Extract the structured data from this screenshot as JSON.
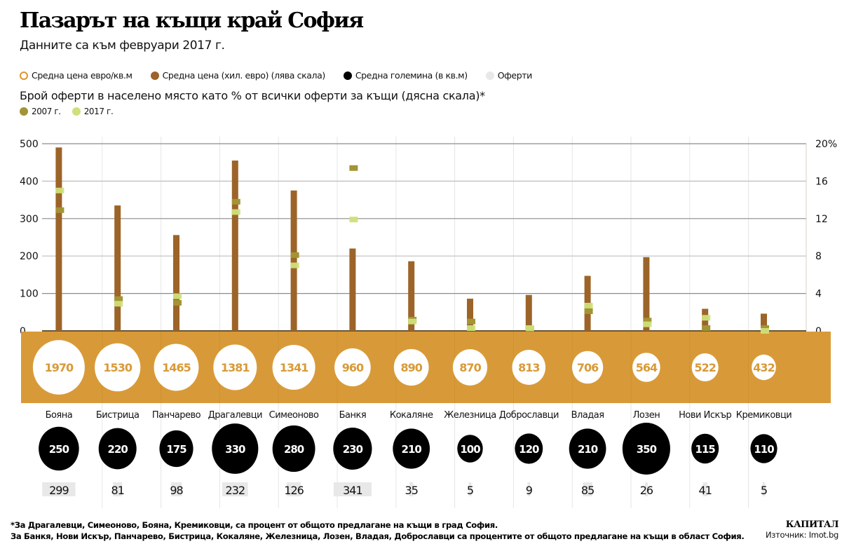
{
  "title": "Пазарът на къщи край София",
  "subtitle": "Данните са към февруари 2017 г.",
  "legend": {
    "items": [
      {
        "label": "Средна цена евро/кв.м",
        "color": "#e0952d",
        "style": "ring"
      },
      {
        "label": "Средна цена (хил. евро) (лява скала)",
        "color": "#9c6428",
        "style": "dot"
      },
      {
        "label": "Средна големина (в кв.м)",
        "color": "#000000",
        "style": "dot"
      },
      {
        "label": "Оферти",
        "color": "#e8e8e8",
        "style": "dot"
      }
    ],
    "offers_share_heading": "Брой оферти в населено място като % от всички оферти за къщи (дясна скала)*",
    "year_items": [
      {
        "label": "2007 г.",
        "color": "#a39434"
      },
      {
        "label": "2017 г.",
        "color": "#cfe07a"
      }
    ]
  },
  "colors": {
    "price_bar": "#9c6428",
    "band": "#d89a38",
    "price_sqm_circle": "#ffffff",
    "price_sqm_text": "#d89a38",
    "size_circle": "#000000",
    "offers_bg": "#e8e8e8",
    "share_2007": "#a39434",
    "share_2017": "#cfe07a",
    "grid": "#8c8c8c"
  },
  "chart_data": {
    "type": "bar",
    "title": "Пазарът на къщи край София",
    "subtitle": "Данните са към февруари 2017 г.",
    "categories": [
      "Бояна",
      "Бистрица",
      "Панчарево",
      "Драгалевци",
      "Симеоново",
      "Банкя",
      "Кокаляне",
      "Железница",
      "Доброславци",
      "Владая",
      "Лозен",
      "Нови Искър",
      "Кремиковци"
    ],
    "left_axis": {
      "label": "Средна цена (хил. евро)",
      "ylim": [
        0,
        500
      ],
      "ticks": [
        "0",
        "100",
        "200",
        "300",
        "400",
        "500"
      ]
    },
    "right_axis": {
      "label": "% от всички оферти за къщи",
      "ylim": [
        0,
        20
      ],
      "ticks": [
        "0",
        "4",
        "8",
        "12",
        "16",
        "20%"
      ]
    },
    "grid": true,
    "series": [
      {
        "name": "Средна цена (хил. евро) (лява скала)",
        "type": "bar",
        "axis": "left",
        "values": [
          490,
          335,
          256,
          455,
          375,
          220,
          186,
          86,
          96,
          147,
          197,
          59,
          46
        ]
      },
      {
        "name": "2007 г.",
        "type": "marker",
        "axis": "right",
        "values": [
          12.9,
          3.4,
          3.0,
          13.8,
          8.1,
          17.4,
          1.2,
          1.0,
          0.2,
          2.1,
          1.1,
          0.3,
          0.3
        ]
      },
      {
        "name": "2017 г.",
        "type": "marker",
        "axis": "right",
        "values": [
          15.0,
          2.9,
          3.7,
          12.7,
          7.0,
          11.9,
          1.0,
          0.3,
          0.3,
          2.7,
          0.7,
          1.4,
          0.0
        ]
      },
      {
        "name": "Средна цена евро/кв.м",
        "type": "circle",
        "values": [
          1970,
          1530,
          1465,
          1381,
          1341,
          960,
          890,
          870,
          813,
          706,
          564,
          522,
          432
        ]
      },
      {
        "name": "Средна големина (в кв.м)",
        "type": "circle",
        "values": [
          250,
          220,
          175,
          330,
          280,
          230,
          210,
          100,
          120,
          210,
          350,
          115,
          110
        ]
      },
      {
        "name": "Оферти",
        "type": "table",
        "values": [
          299,
          81,
          98,
          232,
          126,
          341,
          35,
          5,
          9,
          85,
          26,
          41,
          5
        ]
      }
    ]
  },
  "footnote": {
    "line1": "*За Драгалевци, Симеоново, Бояна, Кремиковци, са процент от общото предлагане на къщи в град София.",
    "line2": "За Банкя, Нови Искър, Панчарево, Бистрица, Кокаляне, Железница, Лозен, Владая, Доброславци са процентите от общото предлагане на къщи в област София."
  },
  "brand": {
    "logo": "КАПИТАЛ",
    "source": "Източник: Imot.bg"
  }
}
